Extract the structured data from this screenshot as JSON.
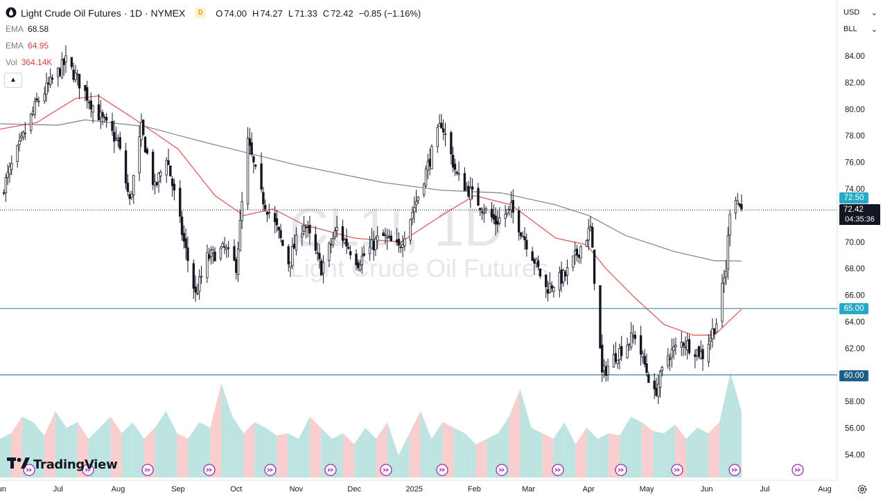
{
  "header": {
    "title": "Light Crude Oil Futures · 1D · NYMEX",
    "interval_badge": "D",
    "ohlc": [
      {
        "key": "O",
        "value": "74.00"
      },
      {
        "key": "H",
        "value": "74.27"
      },
      {
        "key": "L",
        "value": "71.33"
      },
      {
        "key": "C",
        "value": "72.42"
      }
    ],
    "change": "−0.85 (−1.16%)"
  },
  "indicators": [
    {
      "name": "EMA",
      "value": "68.58"
    },
    {
      "name": "EMA",
      "value": "64.95"
    },
    {
      "name": "Vol",
      "value": "364.14K"
    }
  ],
  "currency": "USD",
  "unit": "BLL",
  "watermark": {
    "symbol": "CL1!, 1D",
    "name": "Light Crude Oil Futures"
  },
  "logo_text": "TradingView",
  "countdown": "04:35:36",
  "colors": {
    "up": "#26a69a",
    "down": "#ef5350",
    "candle": "#131722",
    "ema_fast": "#e05a5a",
    "ema_slow": "#888888",
    "hline": "#2a7fa8",
    "level_badge": "#26a9c4"
  },
  "chart_data": {
    "type": "candlestick",
    "x_range": [
      "2024-06-01",
      "2025-08-31"
    ],
    "ylim": [
      53,
      86
    ],
    "y_ticks": [
      "84.00",
      "82.00",
      "80.00",
      "78.00",
      "76.00",
      "74.00",
      "72.00",
      "70.00",
      "68.00",
      "66.00",
      "64.00",
      "62.00",
      "60.00",
      "58.00",
      "56.00",
      "54.00"
    ],
    "x_ticks": [
      {
        "label": "Jun",
        "date": "2024-06-01"
      },
      {
        "label": "Jul",
        "date": "2024-07-01"
      },
      {
        "label": "Aug",
        "date": "2024-08-01"
      },
      {
        "label": "Sep",
        "date": "2024-09-01"
      },
      {
        "label": "Oct",
        "date": "2024-10-01"
      },
      {
        "label": "Nov",
        "date": "2024-11-01"
      },
      {
        "label": "Dec",
        "date": "2024-12-01"
      },
      {
        "label": "2025",
        "date": "2025-01-01"
      },
      {
        "label": "Feb",
        "date": "2025-02-01"
      },
      {
        "label": "Mar",
        "date": "2025-03-01"
      },
      {
        "label": "Apr",
        "date": "2025-04-01"
      },
      {
        "label": "May",
        "date": "2025-05-01"
      },
      {
        "label": "Jun",
        "date": "2025-06-01"
      },
      {
        "label": "Jul",
        "date": "2025-07-01"
      },
      {
        "label": "Aug",
        "date": "2025-08-01"
      }
    ],
    "price_path": [
      [
        "2024-06-01",
        73.5
      ],
      [
        "2024-06-10",
        76.8
      ],
      [
        "2024-06-20",
        80.5
      ],
      [
        "2024-07-05",
        83.6
      ],
      [
        "2024-07-12",
        82.0
      ],
      [
        "2024-07-20",
        80.0
      ],
      [
        "2024-08-01",
        77.5
      ],
      [
        "2024-08-07",
        73.0
      ],
      [
        "2024-08-13",
        78.5
      ],
      [
        "2024-08-20",
        74.0
      ],
      [
        "2024-08-26",
        76.5
      ],
      [
        "2024-09-04",
        70.0
      ],
      [
        "2024-09-10",
        66.0
      ],
      [
        "2024-09-16",
        68.8
      ],
      [
        "2024-09-25",
        69.5
      ],
      [
        "2024-10-01",
        68.2
      ],
      [
        "2024-10-07",
        77.5
      ],
      [
        "2024-10-14",
        73.5
      ],
      [
        "2024-10-22",
        71.0
      ],
      [
        "2024-10-28",
        68.5
      ],
      [
        "2024-11-05",
        71.5
      ],
      [
        "2024-11-14",
        68.0
      ],
      [
        "2024-11-22",
        71.0
      ],
      [
        "2024-12-03",
        68.5
      ],
      [
        "2024-12-15",
        70.5
      ],
      [
        "2024-12-24",
        69.5
      ],
      [
        "2025-01-03",
        73.5
      ],
      [
        "2025-01-15",
        79.0
      ],
      [
        "2025-01-23",
        75.0
      ],
      [
        "2025-02-03",
        73.0
      ],
      [
        "2025-02-12",
        71.5
      ],
      [
        "2025-02-20",
        72.5
      ],
      [
        "2025-03-03",
        69.0
      ],
      [
        "2025-03-10",
        66.5
      ],
      [
        "2025-03-20",
        67.5
      ],
      [
        "2025-04-02",
        71.0
      ],
      [
        "2025-04-08",
        60.0
      ],
      [
        "2025-04-15",
        61.5
      ],
      [
        "2025-04-25",
        63.0
      ],
      [
        "2025-05-05",
        58.5
      ],
      [
        "2025-05-12",
        61.5
      ],
      [
        "2025-05-20",
        62.5
      ],
      [
        "2025-05-30",
        61.5
      ],
      [
        "2025-06-06",
        64.0
      ],
      [
        "2025-06-11",
        68.0
      ],
      [
        "2025-06-13",
        72.5
      ],
      [
        "2025-06-16",
        73.5
      ],
      [
        "2025-06-19",
        72.42
      ]
    ],
    "ema_fast_path": [
      [
        "2024-06-01",
        78.5
      ],
      [
        "2024-06-20",
        79.0
      ],
      [
        "2024-07-10",
        80.8
      ],
      [
        "2024-07-22",
        81.0
      ],
      [
        "2024-08-07",
        79.5
      ],
      [
        "2024-09-01",
        77.0
      ],
      [
        "2024-09-20",
        73.5
      ],
      [
        "2024-10-05",
        72.0
      ],
      [
        "2024-10-20",
        72.5
      ],
      [
        "2024-11-05",
        71.3
      ],
      [
        "2024-12-01",
        70.3
      ],
      [
        "2024-12-25",
        70.0
      ],
      [
        "2025-01-15",
        72.0
      ],
      [
        "2025-02-01",
        73.5
      ],
      [
        "2025-02-20",
        72.8
      ],
      [
        "2025-03-15",
        70.3
      ],
      [
        "2025-03-31",
        69.8
      ],
      [
        "2025-04-10",
        68.0
      ],
      [
        "2025-04-25",
        65.8
      ],
      [
        "2025-05-10",
        63.8
      ],
      [
        "2025-05-25",
        63.0
      ],
      [
        "2025-06-05",
        63.0
      ],
      [
        "2025-06-19",
        64.95
      ]
    ],
    "ema_slow_path": [
      [
        "2024-06-01",
        78.9
      ],
      [
        "2024-07-01",
        78.8
      ],
      [
        "2024-07-15",
        79.2
      ],
      [
        "2024-08-15",
        78.7
      ],
      [
        "2024-09-15",
        77.5
      ],
      [
        "2024-11-01",
        75.8
      ],
      [
        "2024-12-15",
        74.5
      ],
      [
        "2025-01-15",
        73.9
      ],
      [
        "2025-02-15",
        73.7
      ],
      [
        "2025-03-15",
        72.8
      ],
      [
        "2025-04-01",
        72.0
      ],
      [
        "2025-04-20",
        70.5
      ],
      [
        "2025-05-15",
        69.3
      ],
      [
        "2025-06-05",
        68.6
      ],
      [
        "2025-06-19",
        68.58
      ]
    ],
    "volume_profile": [
      0.35,
      0.4,
      0.55,
      0.5,
      0.38,
      0.6,
      0.45,
      0.5,
      0.35,
      0.45,
      0.55,
      0.4,
      0.5,
      0.35,
      0.45,
      0.6,
      0.4,
      0.35,
      0.5,
      0.45,
      0.85,
      0.55,
      0.4,
      0.5,
      0.45,
      0.38,
      0.4,
      0.35,
      0.55,
      0.45,
      0.35,
      0.4,
      0.3,
      0.45,
      0.35,
      0.5,
      0.2,
      0.4,
      0.6,
      0.35,
      0.5,
      0.45,
      0.4,
      0.3,
      0.35,
      0.4,
      0.55,
      0.8,
      0.45,
      0.4,
      0.35,
      0.5,
      0.3,
      0.45,
      0.35,
      0.4,
      0.38,
      0.55,
      0.5,
      0.42,
      0.4,
      0.48,
      0.35,
      0.45,
      0.4,
      0.5,
      0.95,
      0.6
    ],
    "horizontal_levels": [
      {
        "value": 72.5,
        "label": "72.50",
        "style": "badge"
      },
      {
        "value": 72.42,
        "label": "72.42",
        "style": "current"
      },
      {
        "value": 65.0,
        "label": "65.00",
        "style": "line"
      },
      {
        "value": 60.0,
        "label": "60.00",
        "style": "line"
      }
    ]
  }
}
